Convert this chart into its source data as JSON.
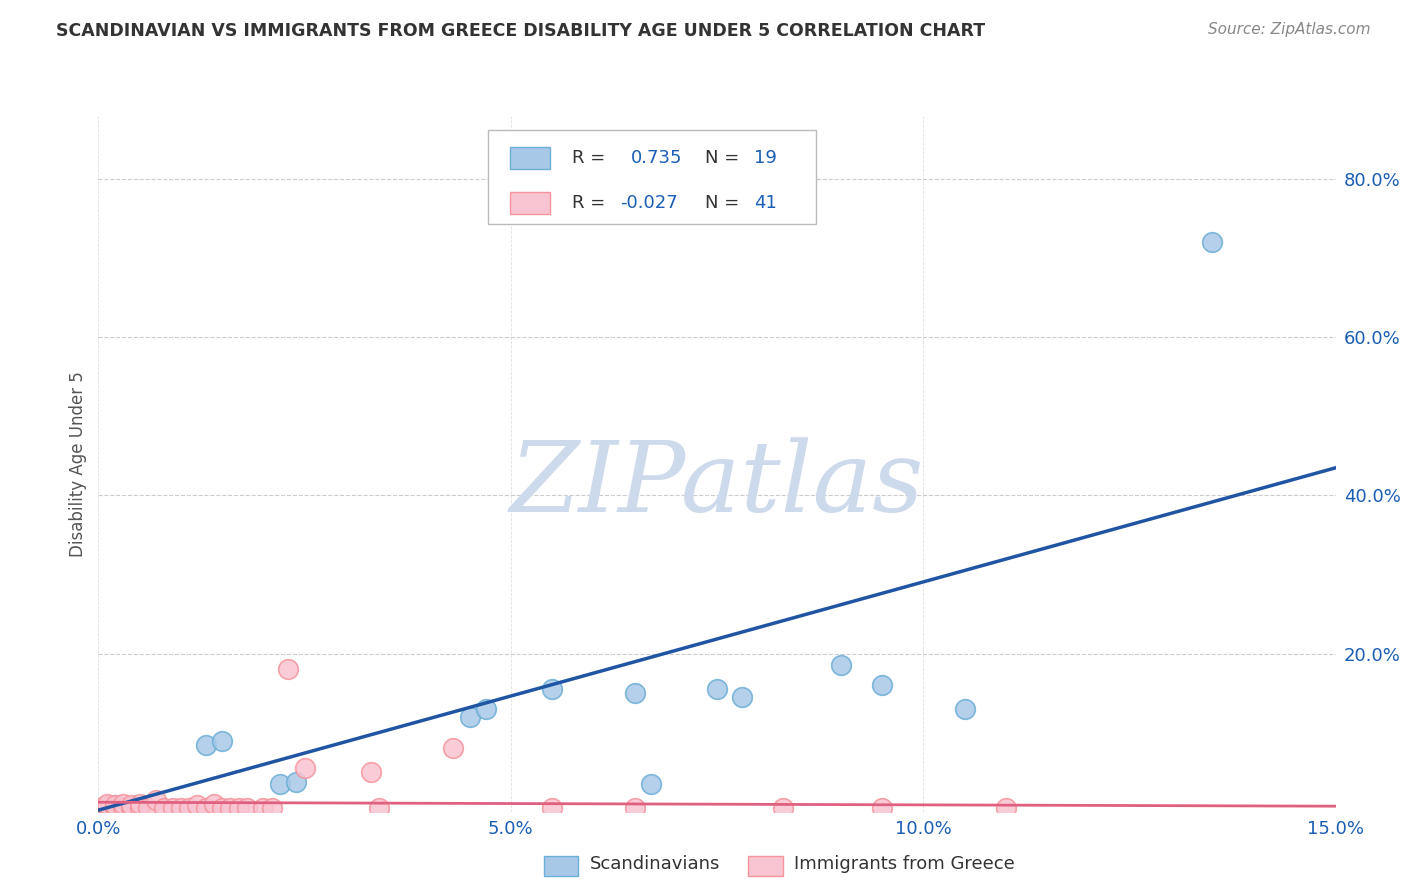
{
  "title": "SCANDINAVIAN VS IMMIGRANTS FROM GREECE DISABILITY AGE UNDER 5 CORRELATION CHART",
  "source": "Source: ZipAtlas.com",
  "ylabel": "Disability Age Under 5",
  "xlim": [
    0.0,
    0.15
  ],
  "ylim": [
    0.0,
    0.88
  ],
  "xticklabels": [
    "0.0%",
    "5.0%",
    "10.0%",
    "15.0%"
  ],
  "xtick_vals": [
    0.0,
    0.05,
    0.1,
    0.15
  ],
  "ytick_vals": [
    0.0,
    0.2,
    0.4,
    0.6,
    0.8
  ],
  "yticklabels_right": [
    "",
    "20.0%",
    "40.0%",
    "60.0%",
    "80.0%"
  ],
  "blue_color": "#a8c8e8",
  "blue_edge_color": "#6baed6",
  "pink_color": "#f9c4d2",
  "pink_edge_color": "#f4949c",
  "blue_line_color": "#2055a4",
  "pink_line_color": "#e06080",
  "legend_text_color": "#1a5eb5",
  "axis_label_color": "#1a5eb5",
  "title_color": "#333333",
  "source_color": "#888888",
  "grid_color": "#cccccc",
  "background_color": "#ffffff",
  "watermark_color": "#cddaeb",
  "blue_scatter_x": [
    0.001,
    0.002,
    0.013,
    0.015,
    0.022,
    0.024,
    0.045,
    0.047,
    0.055,
    0.065,
    0.067,
    0.075,
    0.078,
    0.09,
    0.095,
    0.105,
    0.135
  ],
  "blue_scatter_y": [
    0.005,
    0.008,
    0.085,
    0.09,
    0.035,
    0.038,
    0.12,
    0.13,
    0.155,
    0.15,
    0.035,
    0.155,
    0.145,
    0.185,
    0.16,
    0.13,
    0.72
  ],
  "pink_scatter_x": [
    0.0,
    0.001,
    0.001,
    0.001,
    0.002,
    0.002,
    0.003,
    0.003,
    0.004,
    0.004,
    0.005,
    0.005,
    0.006,
    0.007,
    0.008,
    0.009,
    0.01,
    0.011,
    0.012,
    0.013,
    0.014,
    0.015,
    0.016,
    0.017,
    0.018,
    0.02,
    0.021,
    0.023,
    0.025,
    0.033,
    0.034,
    0.043,
    0.055,
    0.065,
    0.083,
    0.095,
    0.11
  ],
  "pink_scatter_y": [
    0.005,
    0.005,
    0.007,
    0.01,
    0.005,
    0.008,
    0.005,
    0.01,
    0.005,
    0.008,
    0.005,
    0.01,
    0.005,
    0.015,
    0.005,
    0.005,
    0.005,
    0.005,
    0.008,
    0.005,
    0.01,
    0.005,
    0.005,
    0.005,
    0.005,
    0.005,
    0.005,
    0.18,
    0.055,
    0.05,
    0.005,
    0.08,
    0.005,
    0.005,
    0.005,
    0.005,
    0.005
  ],
  "blue_line_x": [
    0.0,
    0.15
  ],
  "blue_line_y": [
    0.002,
    0.435
  ],
  "pink_line_x": [
    0.0,
    0.15
  ],
  "pink_line_y": [
    0.012,
    0.007
  ],
  "watermark": "ZIPatlas"
}
